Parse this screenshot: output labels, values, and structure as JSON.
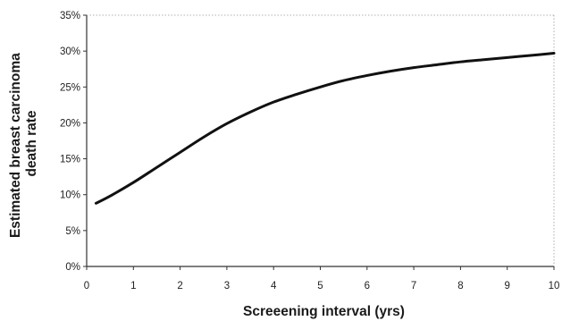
{
  "chart_data": {
    "type": "line",
    "title": "",
    "xlabel": "Screeening interval (yrs)",
    "ylabel": [
      "Estimated breast carcinoma",
      "death rate"
    ],
    "xlim": [
      0,
      10
    ],
    "ylim": [
      0,
      0.35
    ],
    "x_ticks": [
      "0",
      "1",
      "2",
      "3",
      "4",
      "5",
      "6",
      "7",
      "8",
      "9",
      "10"
    ],
    "y_ticks": [
      "0%",
      "5%",
      "10%",
      "15%",
      "20%",
      "25%",
      "30%",
      "35%"
    ],
    "y_tick_values": [
      0,
      0.05,
      0.1,
      0.15,
      0.2,
      0.25,
      0.3,
      0.35
    ],
    "grid": false,
    "legend": "none",
    "series": [
      {
        "color": "#111111",
        "x": [
          0.2,
          0.5,
          1,
          1.5,
          2,
          2.5,
          3,
          3.5,
          4,
          4.5,
          5,
          5.5,
          6,
          6.5,
          7,
          7.5,
          8,
          8.5,
          9,
          9.5,
          10
        ],
        "y": [
          0.088,
          0.098,
          0.117,
          0.138,
          0.159,
          0.18,
          0.199,
          0.215,
          0.229,
          0.24,
          0.25,
          0.259,
          0.266,
          0.272,
          0.277,
          0.281,
          0.285,
          0.288,
          0.291,
          0.294,
          0.297
        ]
      }
    ]
  }
}
